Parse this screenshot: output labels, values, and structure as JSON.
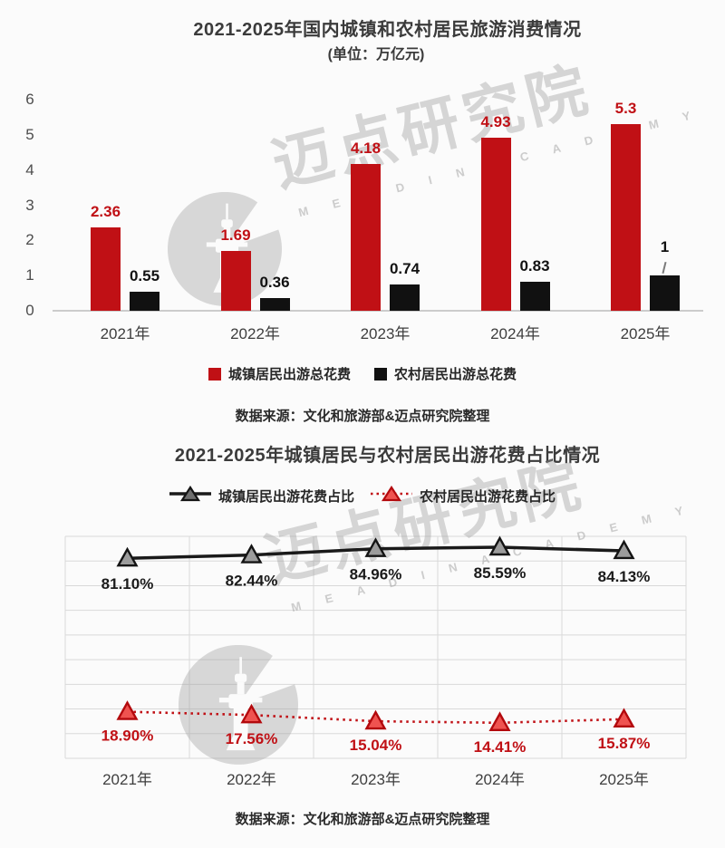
{
  "watermark": {
    "cn": "迈点研究院",
    "en": "M E A D I N   A C A D E M Y"
  },
  "chart_data": [
    {
      "type": "bar",
      "title": "2021-2025年国内城镇和农村居民旅游消费情况",
      "subtitle": "(单位：万亿元)",
      "source_note": "数据来源：文化和旅游部&迈点研究院整理",
      "categories": [
        "2021年",
        "2022年",
        "2023年",
        "2024年",
        "2025年"
      ],
      "series": [
        {
          "name": "城镇居民出游总花费",
          "color": "#c01015",
          "values": [
            2.36,
            1.69,
            4.18,
            4.93,
            5.3
          ]
        },
        {
          "name": "农村居民出游总花费",
          "color": "#111111",
          "values": [
            0.55,
            0.36,
            0.74,
            0.83,
            1
          ]
        }
      ],
      "ylim": [
        0,
        6
      ],
      "yticks": [
        0,
        1,
        2,
        3,
        4,
        5,
        6
      ],
      "grid": false,
      "legend_position": "bottom",
      "callout": {
        "series_index": 1,
        "point_index": 4
      }
    },
    {
      "type": "line",
      "title": "2021-2025年城镇居民与农村居民出游花费占比情况",
      "source_note": "数据来源：文化和旅游部&迈点研究院整理",
      "categories": [
        "2021年",
        "2022年",
        "2023年",
        "2024年",
        "2025年"
      ],
      "series": [
        {
          "name": "城镇居民出游花费占比",
          "color": "#1a1a1a",
          "marker_fill": "#9c9c9c",
          "line_style": "solid",
          "values": [
            81.1,
            82.44,
            84.96,
            85.59,
            84.13
          ],
          "labels": [
            "81.10%",
            "82.44%",
            "84.96%",
            "85.59%",
            "84.13%"
          ]
        },
        {
          "name": "农村居民出游花费占比",
          "color": "#c01015",
          "marker_fill": "#ef5350",
          "line_style": "dotted",
          "values": [
            18.9,
            17.56,
            15.04,
            14.41,
            15.87
          ],
          "labels": [
            "18.90%",
            "17.56%",
            "15.04%",
            "14.41%",
            "15.87%"
          ]
        }
      ],
      "ylim": [
        0,
        90
      ],
      "grid_step": 10,
      "grid": true,
      "grid_color": "#d9d9d9",
      "legend_position": "top"
    }
  ]
}
